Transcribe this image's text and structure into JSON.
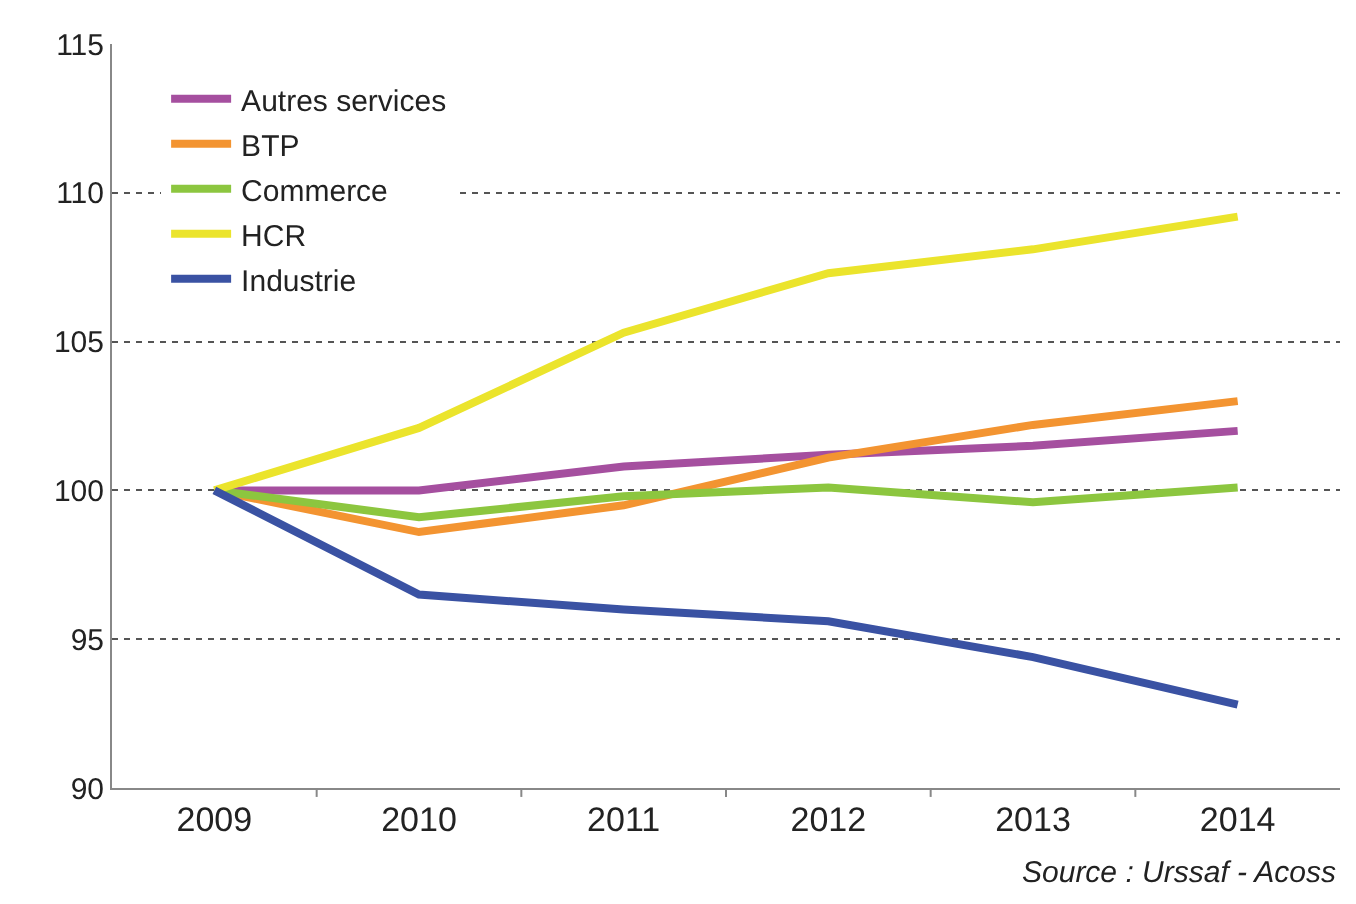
{
  "chart_data": {
    "type": "line",
    "categories": [
      "2009",
      "2010",
      "2011",
      "2012",
      "2013",
      "2014"
    ],
    "series": [
      {
        "name": "Autres services",
        "color": "#a54f9f",
        "values": [
          100,
          100,
          100.8,
          101.2,
          101.5,
          102.0
        ]
      },
      {
        "name": "BTP",
        "color": "#f39431",
        "values": [
          100,
          98.6,
          99.5,
          101.1,
          102.2,
          103.0
        ]
      },
      {
        "name": "Commerce",
        "color": "#8cc63f",
        "values": [
          100,
          99.1,
          99.8,
          100.1,
          99.6,
          100.1
        ]
      },
      {
        "name": "HCR",
        "color": "#ebe42c",
        "values": [
          100,
          102.1,
          105.3,
          107.3,
          108.1,
          109.2
        ]
      },
      {
        "name": "Industrie",
        "color": "#3a52a3",
        "values": [
          100,
          96.5,
          96.0,
          95.6,
          94.4,
          92.8
        ]
      }
    ],
    "ylim": [
      90,
      115
    ],
    "yticks": [
      90,
      95,
      100,
      105,
      110,
      115
    ],
    "grid": "y",
    "legend": "top left",
    "marker": "none",
    "line_style": "solid",
    "annotations": [
      "Source : Urssaf - Acoss"
    ]
  }
}
